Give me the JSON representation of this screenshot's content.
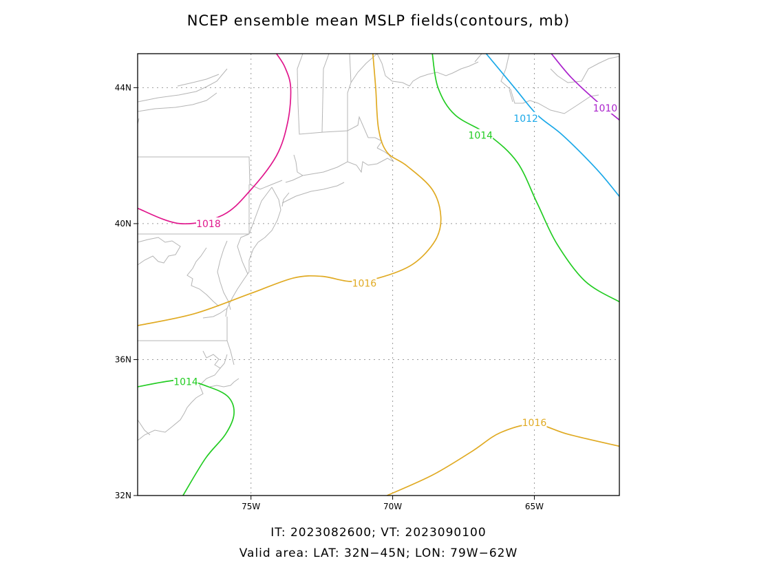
{
  "title": "NCEP ensemble mean MSLP fields(contours, mb)",
  "footer": {
    "line1": "IT: 2023082600; VT: 2023090100",
    "line2": "Valid area: LAT: 32N−45N; LON: 79W−62W"
  },
  "map": {
    "lat_range": [
      32,
      45
    ],
    "lon_range": [
      -79,
      -62
    ],
    "lat_ticks": [
      {
        "value": 32,
        "label": "32N"
      },
      {
        "value": 36,
        "label": "36N"
      },
      {
        "value": 40,
        "label": "40N"
      },
      {
        "value": 44,
        "label": "44N"
      }
    ],
    "lon_ticks": [
      {
        "value": -75,
        "label": "75W"
      },
      {
        "value": -70,
        "label": "70W"
      },
      {
        "value": -65,
        "label": "65W"
      }
    ],
    "grid": true,
    "contours": [
      {
        "level": 1018,
        "label": "1018",
        "color": "#e0168c",
        "points": [
          [
            -79,
            40.45
          ],
          [
            -77.5,
            40.0
          ],
          [
            -76.0,
            40.25
          ],
          [
            -75,
            41.0
          ],
          [
            -74.1,
            42.0
          ],
          [
            -73.7,
            43.0
          ],
          [
            -73.6,
            44.0
          ],
          [
            -73.8,
            44.6
          ],
          [
            -74.1,
            45
          ]
        ],
        "label_at": [
          -76.5,
          40.0
        ]
      },
      {
        "level": 1016,
        "label": "1016",
        "color": "#e0aa22",
        "points": [
          [
            -79,
            37.0
          ],
          [
            -77,
            37.35
          ],
          [
            -75,
            37.95
          ],
          [
            -73.5,
            38.4
          ],
          [
            -72.5,
            38.45
          ],
          [
            -71.5,
            38.3
          ],
          [
            -70.5,
            38.4
          ],
          [
            -69.3,
            38.8
          ],
          [
            -68.5,
            39.5
          ],
          [
            -68.3,
            40.2
          ],
          [
            -68.6,
            41.0
          ],
          [
            -69.5,
            41.7
          ],
          [
            -70.2,
            42.1
          ],
          [
            -70.5,
            42.8
          ],
          [
            -70.6,
            44.0
          ],
          [
            -70.7,
            45
          ]
        ],
        "label_at": [
          -71.0,
          38.25
        ]
      },
      {
        "level": 1016,
        "label": "1016",
        "color": "#e0aa22",
        "points": [
          [
            -70.2,
            32.0
          ],
          [
            -68.6,
            32.6
          ],
          [
            -67.2,
            33.3
          ],
          [
            -66.2,
            33.85
          ],
          [
            -65.0,
            34.1
          ],
          [
            -63.8,
            33.8
          ],
          [
            -62,
            33.45
          ]
        ],
        "label_at": [
          -65.0,
          34.15
        ]
      },
      {
        "level": 1014,
        "label": "1014",
        "color": "#22cc22",
        "points": [
          [
            -79,
            35.2
          ],
          [
            -77.5,
            35.4
          ],
          [
            -76.5,
            35.2
          ],
          [
            -75.8,
            34.9
          ],
          [
            -75.6,
            34.4
          ],
          [
            -75.9,
            33.8
          ],
          [
            -76.6,
            33.1
          ],
          [
            -77.4,
            32.0
          ]
        ],
        "label_at": [
          -77.3,
          35.35
        ]
      },
      {
        "level": 1014,
        "label": "1014",
        "color": "#22cc22",
        "points": [
          [
            -68.6,
            45
          ],
          [
            -68.4,
            44.0
          ],
          [
            -67.8,
            43.2
          ],
          [
            -66.6,
            42.6
          ],
          [
            -65.6,
            41.8
          ],
          [
            -64.9,
            40.6
          ],
          [
            -64.2,
            39.4
          ],
          [
            -63.2,
            38.3
          ],
          [
            -62,
            37.7
          ]
        ],
        "label_at": [
          -66.9,
          42.6
        ]
      },
      {
        "level": 1012,
        "label": "1012",
        "color": "#1aa8e8",
        "points": [
          [
            -66.7,
            45
          ],
          [
            -65.7,
            44.0
          ],
          [
            -64.9,
            43.2
          ],
          [
            -64.0,
            42.6
          ],
          [
            -62.8,
            41.6
          ],
          [
            -62,
            40.8
          ]
        ],
        "label_at": [
          -65.3,
          43.1
        ]
      },
      {
        "level": 1010,
        "label": "1010",
        "color": "#aa22cc",
        "points": [
          [
            -64.4,
            45
          ],
          [
            -63.7,
            44.3
          ],
          [
            -62.8,
            43.6
          ],
          [
            -62,
            43.05
          ]
        ],
        "label_at": [
          -62.5,
          43.4
        ]
      }
    ]
  }
}
